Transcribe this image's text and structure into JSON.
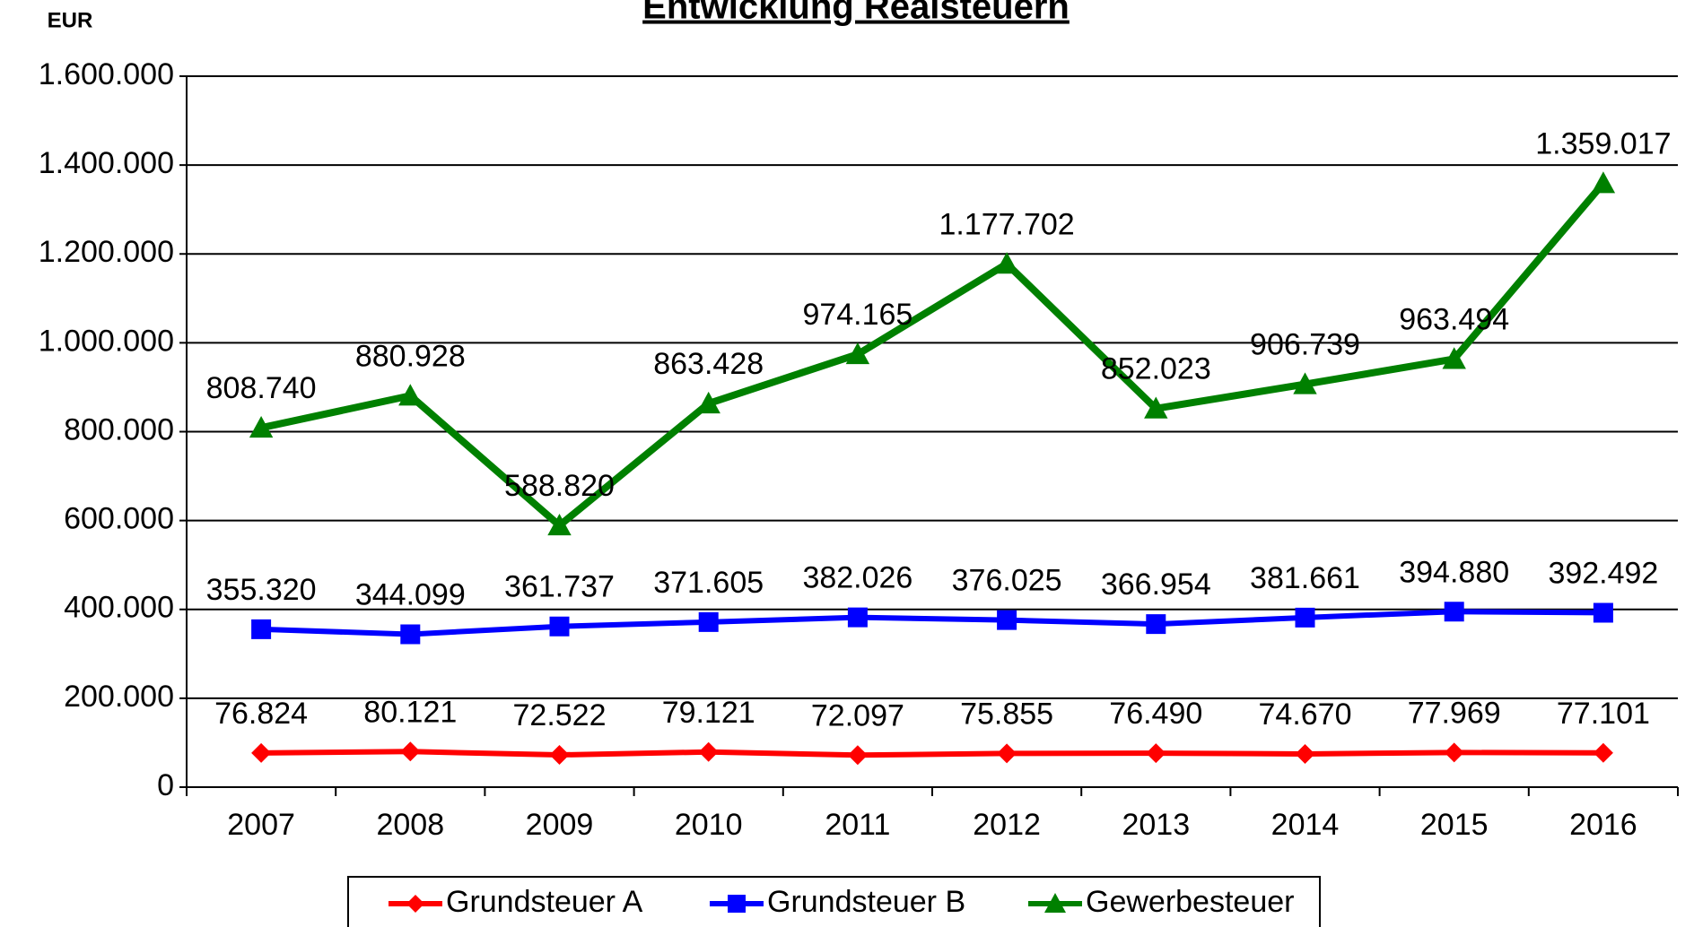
{
  "chart_data": {
    "type": "line",
    "title": "Entwicklung Realsteuern",
    "y_label": "EUR",
    "categories": [
      "2007",
      "2008",
      "2009",
      "2010",
      "2011",
      "2012",
      "2013",
      "2014",
      "2015",
      "2016"
    ],
    "series": [
      {
        "name": "Grundsteuer A",
        "color": "#ff0000",
        "marker": "diamond",
        "values": [
          76824,
          80121,
          72522,
          79121,
          72097,
          75855,
          76490,
          74670,
          77969,
          77101
        ],
        "value_labels": [
          "76.824",
          "80.121",
          "72.522",
          "79.121",
          "72.097",
          "75.855",
          "76.490",
          "74.670",
          "77.969",
          "77.101"
        ]
      },
      {
        "name": "Grundsteuer B",
        "color": "#0000ff",
        "marker": "square",
        "values": [
          355320,
          344099,
          361737,
          371605,
          382026,
          376025,
          366954,
          381661,
          394880,
          392492
        ],
        "value_labels": [
          "355.320",
          "344.099",
          "361.737",
          "371.605",
          "382.026",
          "376.025",
          "366.954",
          "381.661",
          "394.880",
          "392.492"
        ]
      },
      {
        "name": "Gewerbesteuer",
        "color": "#008000",
        "marker": "triangle",
        "values": [
          808740,
          880928,
          588820,
          863428,
          974165,
          1177702,
          852023,
          906739,
          963494,
          1359017
        ],
        "value_labels": [
          "808.740",
          "880.928",
          "588.820",
          "863.428",
          "974.165",
          "1.177.702",
          "852.023",
          "906.739",
          "963.494",
          "1.359.017"
        ]
      }
    ],
    "ylim": [
      0,
      1600000
    ],
    "yticks": [
      0,
      {
        "value": 200000,
        "label": "200.000"
      },
      {
        "value": 400000,
        "label": "400.000"
      },
      {
        "value": 600000,
        "label": "600.000"
      },
      {
        "value": 800000,
        "label": "800.000"
      },
      {
        "value": 1000000,
        "label": "1.000.000"
      },
      {
        "value": 1200000,
        "label": "1.200.000"
      },
      {
        "value": 1400000,
        "label": "1.400.000"
      },
      {
        "value": 1600000,
        "label": "1.600.000"
      }
    ],
    "grid": true,
    "legend": "bottom"
  }
}
